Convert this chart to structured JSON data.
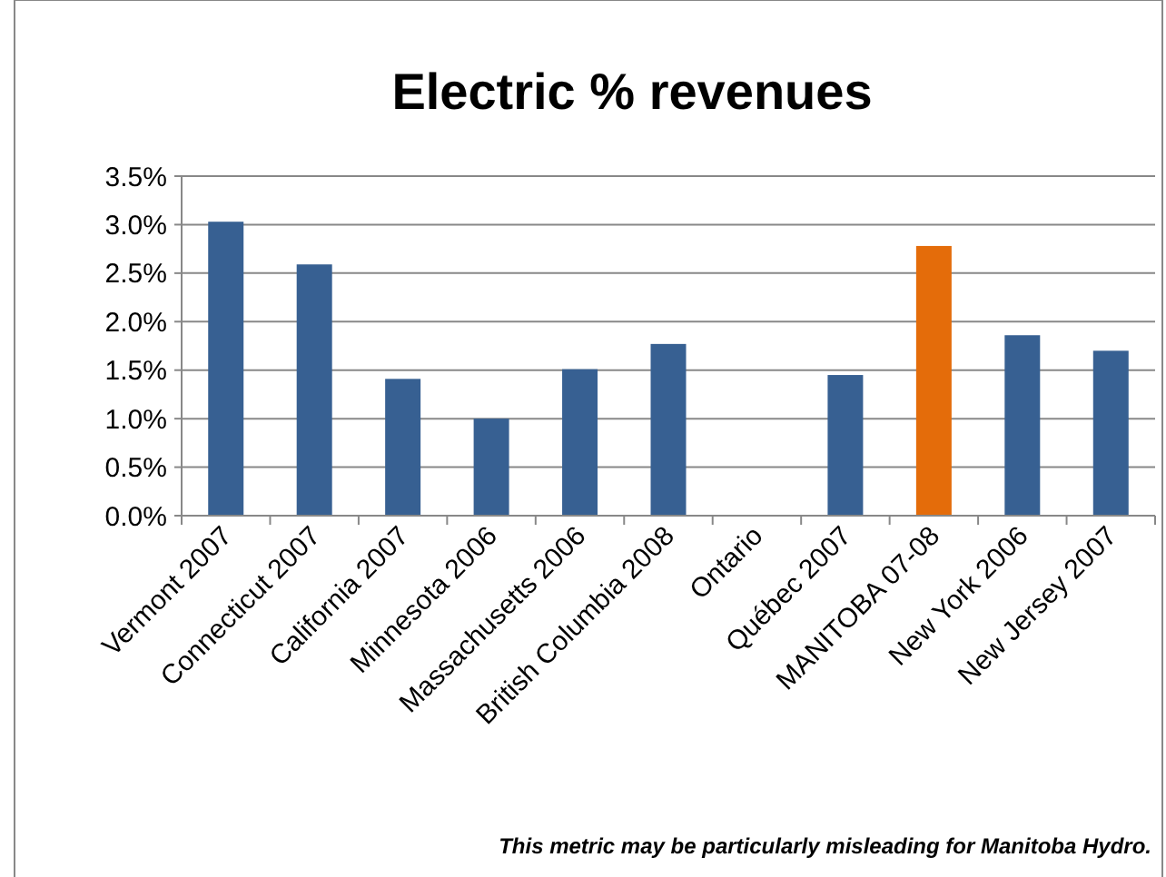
{
  "chart_data": {
    "type": "bar",
    "title": "Electric % revenues",
    "categories": [
      "Vermont 2007",
      "Connecticut 2007",
      "California 2007",
      "Minnesota 2006",
      "Massachusetts 2006",
      "British Columbia 2008",
      "Ontario",
      "Québec 2007",
      "MANITOBA 07-08",
      "New York 2006",
      "New Jersey 2007"
    ],
    "values": [
      3.03,
      2.59,
      1.41,
      1.0,
      1.51,
      1.77,
      null,
      1.45,
      2.78,
      1.86,
      1.7
    ],
    "colors": [
      "#376092",
      "#376092",
      "#376092",
      "#376092",
      "#376092",
      "#376092",
      null,
      "#376092",
      "#e46c0a",
      "#376092",
      "#376092"
    ],
    "ylim": [
      0,
      3.5
    ],
    "yticks": [
      {
        "value": 0,
        "label": "0.0%"
      },
      {
        "value": 0.5,
        "label": "0.5%"
      },
      {
        "value": 1,
        "label": "1.0%"
      },
      {
        "value": 1.5,
        "label": "1.5%"
      },
      {
        "value": 2,
        "label": "2.0%"
      },
      {
        "value": 2.5,
        "label": "2.5%"
      },
      {
        "value": 3,
        "label": "3.0%"
      },
      {
        "value": 3.5,
        "label": "3.5%"
      }
    ],
    "grid": "y",
    "annotations": [
      "This metric may be particularly misleading for Manitoba Hydro."
    ]
  }
}
